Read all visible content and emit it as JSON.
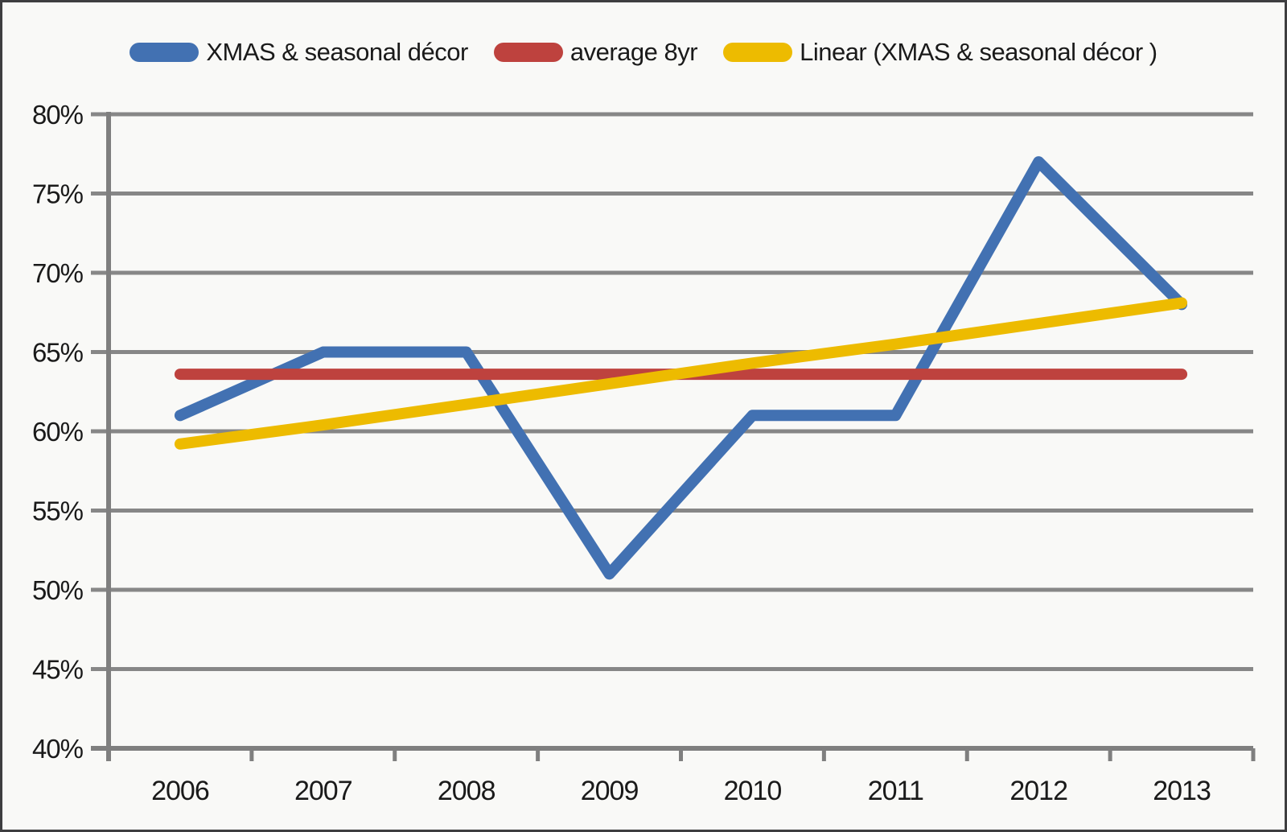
{
  "chart_data": {
    "type": "line",
    "title": "",
    "xlabel": "",
    "ylabel": "",
    "categories": [
      "2006",
      "2007",
      "2008",
      "2009",
      "2010",
      "2011",
      "2012",
      "2013"
    ],
    "series": [
      {
        "name": "XMAS & seasonal décor",
        "color": "#4271B2",
        "values": [
          61,
          65,
          65,
          51,
          61,
          61,
          77,
          68
        ]
      },
      {
        "name": "average 8yr",
        "color": "#BE423E",
        "values": [
          63.6,
          63.6,
          63.6,
          63.6,
          63.6,
          63.6,
          63.6,
          63.6
        ]
      },
      {
        "name": "Linear (XMAS & seasonal décor )",
        "color": "#EDBB00",
        "values": [
          59.2,
          60.4,
          61.7,
          63.0,
          64.3,
          65.5,
          66.8,
          68.1
        ]
      }
    ],
    "ylim": [
      40,
      80
    ],
    "ytick_step": 5,
    "ytick_labels": [
      "40%",
      "45%",
      "50%",
      "55%",
      "60%",
      "65%",
      "70%",
      "75%",
      "80%"
    ],
    "grid": true,
    "legend_position": "top",
    "grid_color": "#878787",
    "axis_color": "#7F7F7F",
    "text_color": "#1A1A1A",
    "background_color": "#F9F9F7"
  }
}
